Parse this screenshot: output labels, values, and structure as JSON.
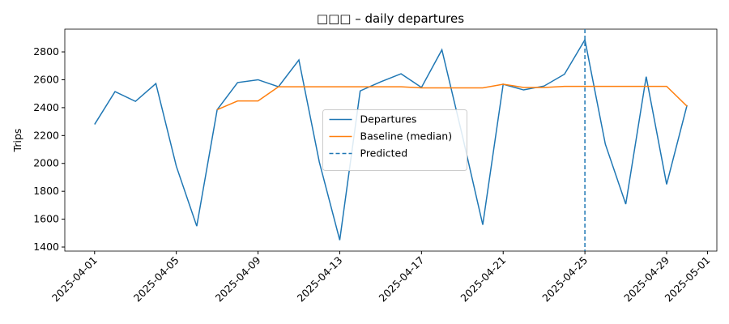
{
  "chart_data": {
    "type": "line",
    "title": "□□□ – daily departures",
    "y_label": "Trips",
    "x": [
      "2025-04-01",
      "2025-04-02",
      "2025-04-03",
      "2025-04-04",
      "2025-04-05",
      "2025-04-06",
      "2025-04-07",
      "2025-04-08",
      "2025-04-09",
      "2025-04-10",
      "2025-04-11",
      "2025-04-12",
      "2025-04-13",
      "2025-04-14",
      "2025-04-15",
      "2025-04-16",
      "2025-04-17",
      "2025-04-18",
      "2025-04-19",
      "2025-04-20",
      "2025-04-21",
      "2025-04-22",
      "2025-04-23",
      "2025-04-24",
      "2025-04-25",
      "2025-04-26",
      "2025-04-27",
      "2025-04-28",
      "2025-04-29",
      "2025-04-30"
    ],
    "series": [
      {
        "name": "Departures",
        "color": "#1f77b4",
        "values": [
          2280,
          2515,
          2445,
          2573,
          1980,
          1550,
          2385,
          2580,
          2600,
          2550,
          2742,
          2010,
          1450,
          2520,
          2585,
          2643,
          2545,
          2815,
          2200,
          1560,
          2568,
          2527,
          2555,
          2640,
          2887,
          2138,
          1708,
          2622,
          1850,
          2418
        ]
      },
      {
        "name": "Baseline (median)",
        "color": "#ff7f0e",
        "values": [
          null,
          null,
          null,
          null,
          null,
          null,
          2385,
          2448,
          2448,
          2550,
          2550,
          2550,
          2550,
          2550,
          2550,
          2550,
          2542,
          2542,
          2542,
          2542,
          2568,
          2545,
          2545,
          2553,
          2553,
          2553,
          2553,
          2553,
          2553,
          2410
        ]
      }
    ],
    "vlines": [
      {
        "name": "Predicted",
        "x": "2025-04-25",
        "color": "#1f77b4"
      }
    ],
    "xlim": [
      "2025-03-30T13:00Z",
      "2025-05-01T11:00Z"
    ],
    "xticks": [
      "2025-04-01",
      "2025-04-05",
      "2025-04-09",
      "2025-04-13",
      "2025-04-17",
      "2025-04-21",
      "2025-04-25",
      "2025-04-29",
      "2025-05-01"
    ],
    "ylim": [
      1371,
      2963
    ],
    "yticks": [
      1400,
      1600,
      1800,
      2000,
      2200,
      2400,
      2600,
      2800
    ],
    "legend": "center"
  }
}
